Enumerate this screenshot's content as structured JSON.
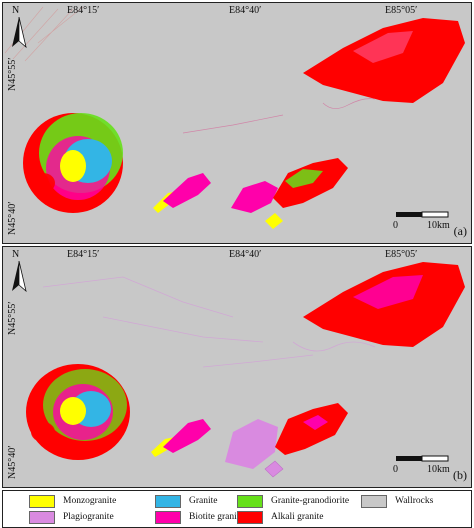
{
  "panels": [
    {
      "id": "a",
      "tag": "(a)",
      "lon_labels": [
        "E84°15′",
        "E84°40′",
        "E85°05′"
      ],
      "lat_labels": [
        "N45°55′",
        "N45°40′"
      ],
      "north": "N",
      "scale_start": "0",
      "scale_end": "10km"
    },
    {
      "id": "b",
      "tag": "(b)",
      "lon_labels": [
        "E84°15′",
        "E84°40′",
        "E85°05′"
      ],
      "lat_labels": [
        "N45°55′",
        "N45°40′"
      ],
      "north": "N",
      "scale_start": "0",
      "scale_end": "10km"
    }
  ],
  "legend": [
    {
      "label": "Monzogranite",
      "color": "#ffff00"
    },
    {
      "label": "Granite",
      "color": "#33b5e5"
    },
    {
      "label": "Granite-granodiorite",
      "color": "#66e01a"
    },
    {
      "label": "Wallrocks",
      "color": "#c8c8c8"
    },
    {
      "label": "Plagiogranite",
      "color": "#d98ae0"
    },
    {
      "label": "Biotite granite",
      "color": "#ff00aa"
    },
    {
      "label": "Alkali granite",
      "color": "#ff0000"
    }
  ],
  "colors": {
    "background": "#c8c8c8",
    "monzogranite": "#ffff00",
    "granite": "#33b5e5",
    "granite_granodiorite": "#66e01a",
    "plagiogranite": "#d98ae0",
    "biotite_granite": "#ff00aa",
    "alkali_granite": "#ff0000"
  }
}
